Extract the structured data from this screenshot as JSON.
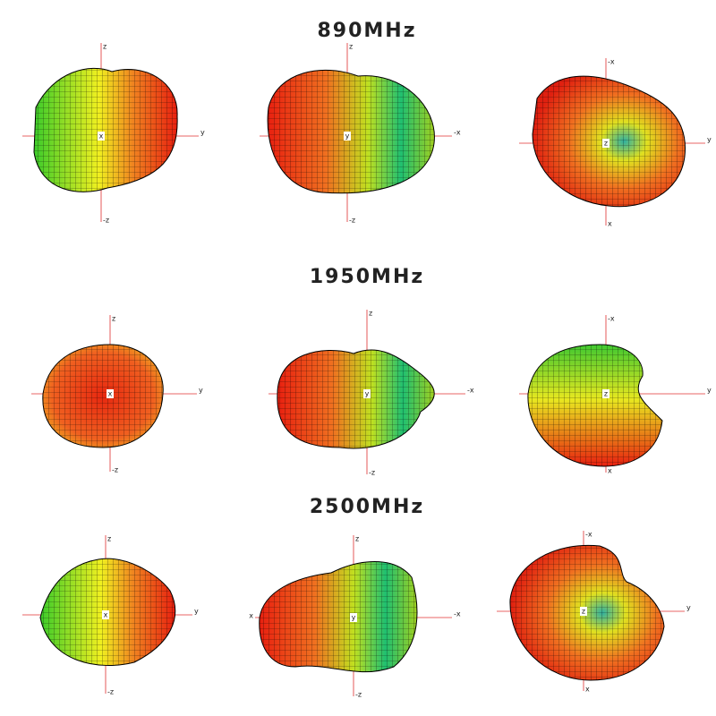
{
  "rows": [
    {
      "title": "890MHz",
      "plots": [
        {
          "center": "x",
          "top": "z",
          "bottom": "-z",
          "right": "y"
        },
        {
          "center": "y",
          "top": "z",
          "bottom": "-z",
          "right": "-x"
        },
        {
          "center": "z",
          "top": "-x",
          "bottom": "x",
          "right": "y"
        }
      ]
    },
    {
      "title": "1950MHz",
      "plots": [
        {
          "center": "x",
          "top": "z",
          "bottom": "-z",
          "right": "y"
        },
        {
          "center": "y",
          "top": "z",
          "bottom": "-z",
          "right": "-x"
        },
        {
          "center": "z",
          "top": "-x",
          "bottom": "x",
          "right": "y"
        }
      ]
    },
    {
      "title": "2500MHz",
      "plots": [
        {
          "center": "x",
          "top": "z",
          "bottom": "-z",
          "right": "y"
        },
        {
          "center": "y",
          "top": "z",
          "bottom": "-z",
          "right": "-x",
          "left": "x"
        },
        {
          "center": "z",
          "top": "-x",
          "bottom": "x",
          "right": "y"
        }
      ]
    }
  ]
}
